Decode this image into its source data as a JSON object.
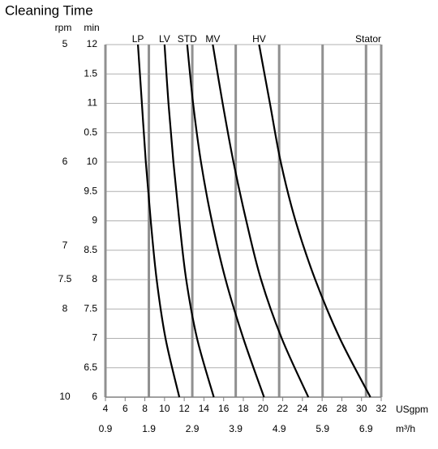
{
  "chart_data": {
    "type": "line",
    "title": "Cleaning Time",
    "ylabel": "min",
    "y2label": "rpm",
    "xlabel": "USgpm",
    "x2label": "m³/h",
    "xlim": [
      4,
      32
    ],
    "xticks": [
      4,
      6,
      8,
      10,
      12,
      14,
      16,
      18,
      20,
      22,
      24,
      26,
      28,
      30,
      32
    ],
    "x2lim": [
      0.9,
      7.25
    ],
    "x2ticks": [
      0.9,
      1.9,
      2.9,
      3.9,
      4.9,
      5.9,
      6.9
    ],
    "ylim": [
      6,
      12
    ],
    "yticks": [
      6,
      6.5,
      7,
      7.5,
      8,
      8.5,
      9,
      9.5,
      10,
      {
        "value": 10.5,
        "label": "0.5"
      },
      11,
      {
        "value": 11.5,
        "label": "1.5"
      },
      12
    ],
    "y2lim": [
      10,
      5
    ],
    "y2scale": "reciprocal",
    "y2ticks": [
      5,
      6,
      7,
      7.5,
      8,
      10
    ],
    "grid": true,
    "annotation": "Stator",
    "series": [
      {
        "name": "LP",
        "color": "#000000",
        "x": [
          7.3,
          7.7,
          8.1,
          8.6,
          9.2,
          10.1,
          11.5
        ],
        "values": [
          12,
          11,
          10,
          9,
          8,
          7,
          6
        ]
      },
      {
        "name": "LV",
        "color": "#000000",
        "x": [
          10.0,
          10.4,
          10.9,
          11.5,
          12.2,
          13.3,
          15.0
        ],
        "values": [
          12,
          11,
          10,
          9,
          8,
          7,
          6
        ]
      },
      {
        "name": "STD",
        "color": "#000000",
        "x": [
          12.3,
          12.9,
          13.7,
          14.8,
          16.2,
          18.0,
          20.1
        ],
        "values": [
          12,
          11,
          10,
          9,
          8,
          7,
          6
        ]
      },
      {
        "name": "MV",
        "color": "#000000",
        "x": [
          14.9,
          15.9,
          17.0,
          18.3,
          19.8,
          21.9,
          24.6
        ],
        "values": [
          12,
          11,
          10,
          9,
          8,
          7,
          6
        ]
      },
      {
        "name": "HV",
        "color": "#000000",
        "x": [
          19.6,
          20.7,
          21.8,
          23.3,
          25.3,
          27.8,
          30.9
        ],
        "values": [
          12,
          11,
          10,
          9,
          8,
          7,
          6
        ]
      }
    ]
  }
}
